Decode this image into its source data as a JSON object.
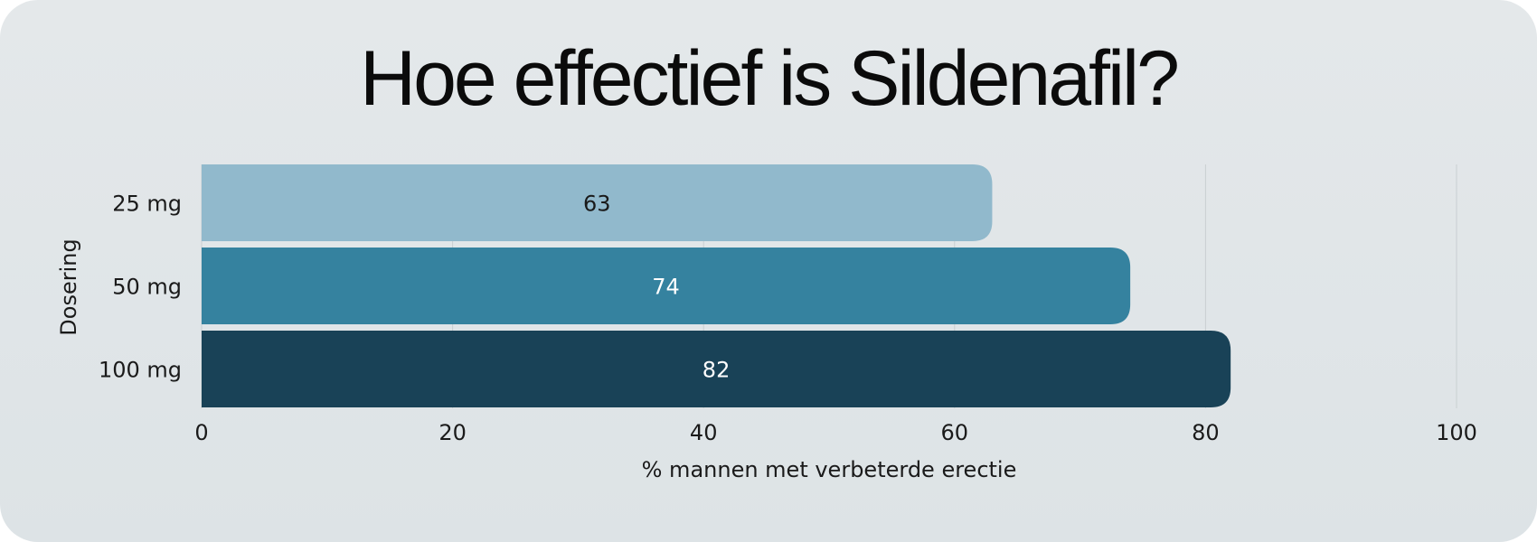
{
  "chart_data": {
    "type": "bar",
    "orientation": "horizontal",
    "title": "Hoe effectief is Sildenafil?",
    "categories": [
      "25 mg",
      "50 mg",
      "100 mg"
    ],
    "values": [
      63,
      74,
      82
    ],
    "value_labels": [
      "63",
      "74",
      "82"
    ],
    "xlabel": "% mannen met verbeterde erectie",
    "ylabel": "Dosering",
    "xlim": [
      0,
      100
    ],
    "xticks": [
      0,
      20,
      40,
      60,
      80,
      100
    ],
    "xtick_labels": [
      "0",
      "20",
      "40",
      "60",
      "80",
      "100"
    ],
    "grid": "vertical",
    "colors": [
      "#91b9cc",
      "#35829f",
      "#194257"
    ],
    "label_colors": [
      "#1a1a1a",
      "#ffffff",
      "#ffffff"
    ],
    "background_color": "#e1e6e8"
  }
}
